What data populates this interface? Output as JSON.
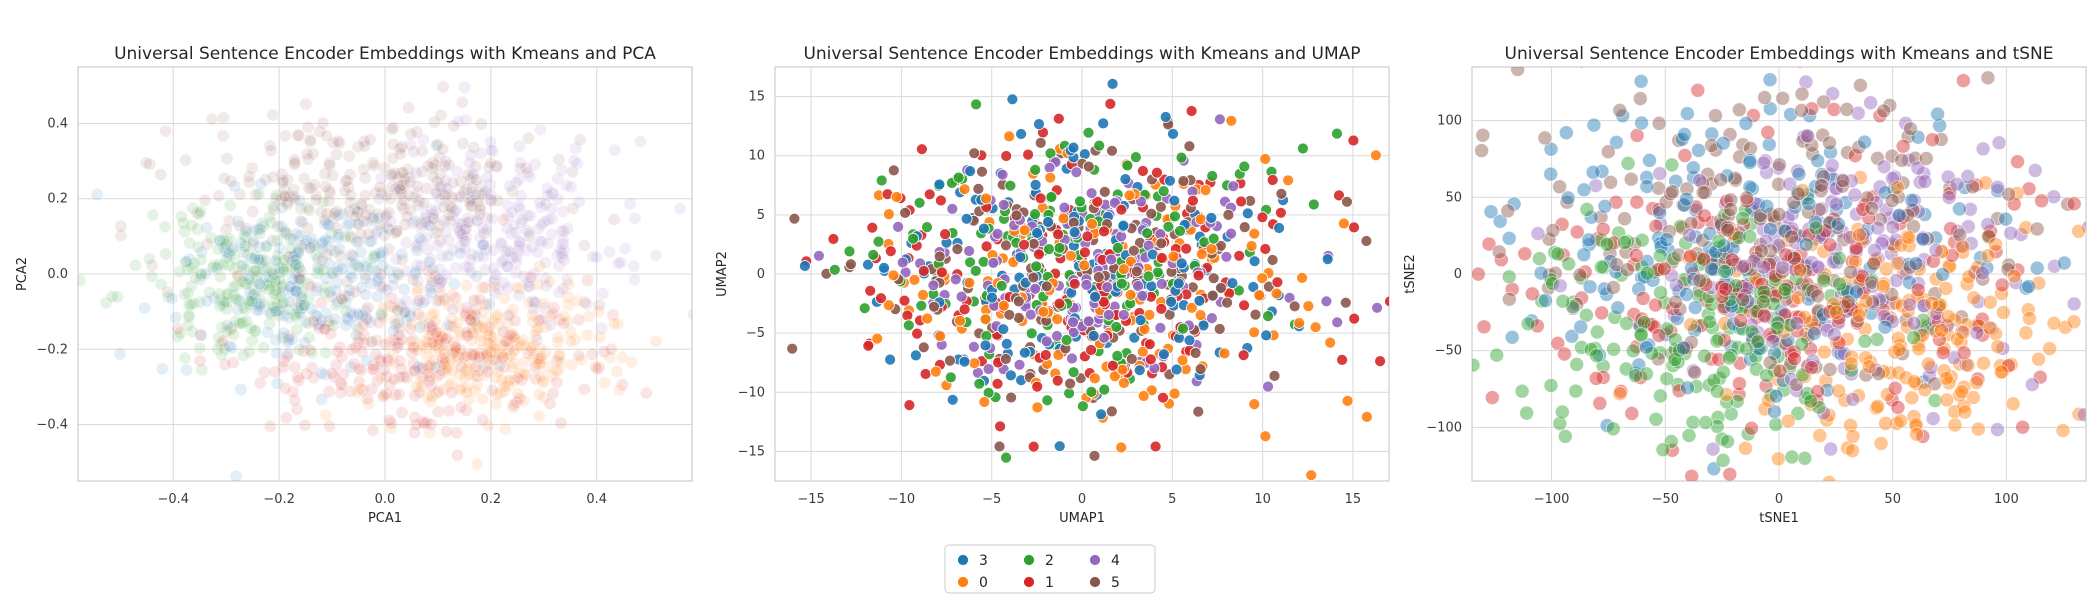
{
  "palette": {
    "3": "#1f77b4",
    "0": "#ff7f0e",
    "2": "#2ca02c",
    "1": "#d62728",
    "4": "#9467bd",
    "5": "#8c564b"
  },
  "chart_data": [
    {
      "type": "scatter",
      "title": "Universal Sentence Encoder Embeddings with Kmeans and PCA",
      "xlabel": "PCA1",
      "ylabel": "PCA2",
      "xlim": [
        -0.58,
        0.58
      ],
      "ylim": [
        -0.55,
        0.55
      ],
      "xticks": [
        -0.4,
        -0.2,
        0.0,
        0.2,
        0.4
      ],
      "xtick_labels": [
        "−0.4",
        "−0.2",
        "0.0",
        "0.2",
        "0.4"
      ],
      "yticks": [
        -0.4,
        -0.2,
        0.0,
        0.2,
        0.4
      ],
      "ytick_labels": [
        "−0.4",
        "−0.2",
        "0.0",
        "0.2",
        "0.4"
      ],
      "grid": true,
      "series": [
        {
          "name": "3",
          "center": [
            -0.12,
            -0.02
          ],
          "spread": [
            0.13,
            0.11
          ],
          "count": 260,
          "alpha": 0.12
        },
        {
          "name": "0",
          "center": [
            0.2,
            -0.2
          ],
          "spread": [
            0.12,
            0.09
          ],
          "count": 260,
          "alpha": 0.12
        },
        {
          "name": "2",
          "center": [
            -0.25,
            -0.02
          ],
          "spread": [
            0.1,
            0.1
          ],
          "count": 220,
          "alpha": 0.12
        },
        {
          "name": "1",
          "center": [
            0.05,
            -0.22
          ],
          "spread": [
            0.17,
            0.1
          ],
          "count": 240,
          "alpha": 0.12
        },
        {
          "name": "4",
          "center": [
            0.2,
            0.1
          ],
          "spread": [
            0.12,
            0.12
          ],
          "count": 260,
          "alpha": 0.12
        },
        {
          "name": "5",
          "center": [
            -0.03,
            0.22
          ],
          "spread": [
            0.17,
            0.1
          ],
          "count": 280,
          "alpha": 0.12
        }
      ]
    },
    {
      "type": "scatter",
      "title": "Universal Sentence Encoder Embeddings with Kmeans and UMAP",
      "xlabel": "UMAP1",
      "ylabel": "UMAP2",
      "xlim": [
        -17,
        17
      ],
      "ylim": [
        -17.5,
        17.5
      ],
      "xticks": [
        -15,
        -10,
        -5,
        0,
        5,
        10,
        15
      ],
      "xtick_labels": [
        "−15",
        "−10",
        "−5",
        "0",
        "5",
        "10",
        "15"
      ],
      "yticks": [
        -15,
        -10,
        -5,
        0,
        5,
        10,
        15
      ],
      "ytick_labels": [
        "−15",
        "−10",
        "−5",
        "0",
        "5",
        "10",
        "15"
      ],
      "grid": true,
      "series": [
        {
          "name": "3",
          "center": [
            0,
            0
          ],
          "spread": [
            6,
            5.5
          ],
          "count": 160,
          "alpha": 0.9
        },
        {
          "name": "0",
          "center": [
            1.5,
            -1
          ],
          "spread": [
            6,
            5.5
          ],
          "count": 160,
          "alpha": 0.9
        },
        {
          "name": "2",
          "center": [
            -1,
            1
          ],
          "spread": [
            6,
            5.5
          ],
          "count": 160,
          "alpha": 0.9
        },
        {
          "name": "1",
          "center": [
            0,
            0
          ],
          "spread": [
            6,
            5.5
          ],
          "count": 170,
          "alpha": 0.9
        },
        {
          "name": "4",
          "center": [
            0,
            0.5
          ],
          "spread": [
            5.5,
            5
          ],
          "count": 170,
          "alpha": 0.9
        },
        {
          "name": "5",
          "center": [
            0,
            0
          ],
          "spread": [
            6,
            5.5
          ],
          "count": 170,
          "alpha": 0.9
        }
      ]
    },
    {
      "type": "scatter",
      "title": "Universal Sentence Encoder Embeddings with Kmeans and tSNE",
      "xlabel": "tSNE1",
      "ylabel": "tSNE2",
      "xlim": [
        -135,
        135
      ],
      "ylim": [
        -135,
        135
      ],
      "xticks": [
        -100,
        -50,
        0,
        50,
        100
      ],
      "xtick_labels": [
        "−100",
        "−50",
        "0",
        "50",
        "100"
      ],
      "yticks": [
        -100,
        -50,
        0,
        50,
        100
      ],
      "ytick_labels": [
        "−100",
        "−50",
        "0",
        "50",
        "100"
      ],
      "grid": true,
      "series": [
        {
          "name": "3",
          "center": [
            -10,
            20
          ],
          "spread": [
            55,
            50
          ],
          "count": 200,
          "alpha": 0.45
        },
        {
          "name": "0",
          "center": [
            55,
            -40
          ],
          "spread": [
            40,
            40
          ],
          "count": 200,
          "alpha": 0.45
        },
        {
          "name": "2",
          "center": [
            -40,
            -30
          ],
          "spread": [
            40,
            45
          ],
          "count": 200,
          "alpha": 0.45
        },
        {
          "name": "1",
          "center": [
            0,
            -10
          ],
          "spread": [
            55,
            50
          ],
          "count": 210,
          "alpha": 0.45
        },
        {
          "name": "4",
          "center": [
            30,
            10
          ],
          "spread": [
            45,
            45
          ],
          "count": 210,
          "alpha": 0.45
        },
        {
          "name": "5",
          "center": [
            -10,
            30
          ],
          "spread": [
            50,
            45
          ],
          "count": 210,
          "alpha": 0.45
        }
      ]
    }
  ],
  "legend": {
    "placement": "bottom-center",
    "entries": [
      "3",
      "0",
      "2",
      "1",
      "4",
      "5"
    ]
  }
}
